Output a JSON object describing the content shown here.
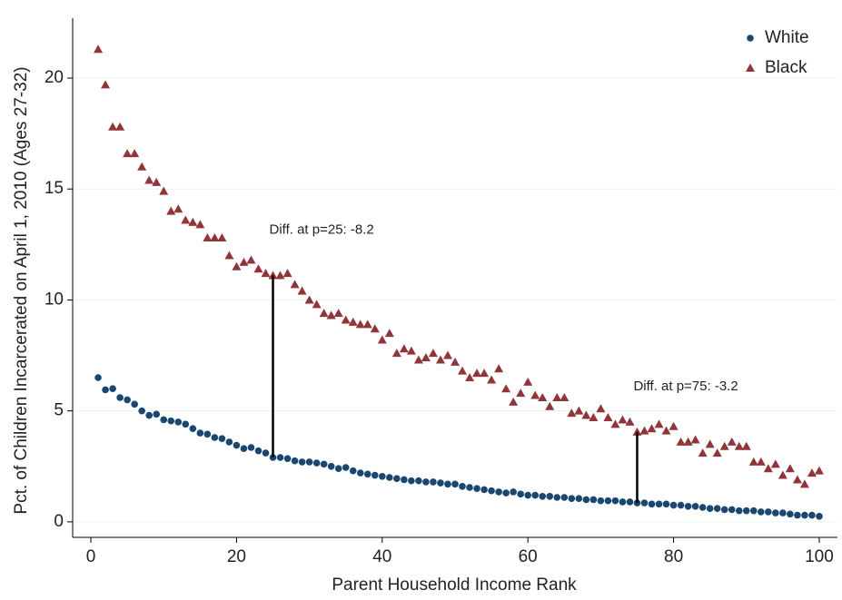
{
  "chart_data": {
    "type": "scatter",
    "x_label": "Parent Household Income Rank",
    "y_label": "Pct. of Children Incarcerated on April 1, 2010 (Ages 27-32)",
    "x": [
      1,
      2,
      3,
      4,
      5,
      6,
      7,
      8,
      9,
      10,
      11,
      12,
      13,
      14,
      15,
      16,
      17,
      18,
      19,
      20,
      21,
      22,
      23,
      24,
      25,
      26,
      27,
      28,
      29,
      30,
      31,
      32,
      33,
      34,
      35,
      36,
      37,
      38,
      39,
      40,
      41,
      42,
      43,
      44,
      45,
      46,
      47,
      48,
      49,
      50,
      51,
      52,
      53,
      54,
      55,
      56,
      57,
      58,
      59,
      60,
      61,
      62,
      63,
      64,
      65,
      66,
      67,
      68,
      69,
      70,
      71,
      72,
      73,
      74,
      75,
      76,
      77,
      78,
      79,
      80,
      81,
      82,
      83,
      84,
      85,
      86,
      87,
      88,
      89,
      90,
      91,
      92,
      93,
      94,
      95,
      96,
      97,
      98,
      99,
      100
    ],
    "series": [
      {
        "name": "White",
        "color": "#1a476f",
        "marker": "circle",
        "values": [
          6.5,
          5.95,
          6.0,
          5.6,
          5.5,
          5.3,
          5.0,
          4.8,
          4.85,
          4.6,
          4.55,
          4.5,
          4.4,
          4.2,
          4.0,
          3.95,
          3.8,
          3.75,
          3.6,
          3.45,
          3.3,
          3.35,
          3.2,
          3.1,
          2.9,
          2.9,
          2.85,
          2.75,
          2.7,
          2.7,
          2.65,
          2.6,
          2.5,
          2.4,
          2.45,
          2.3,
          2.2,
          2.15,
          2.1,
          2.05,
          2.0,
          1.95,
          1.9,
          1.85,
          1.85,
          1.8,
          1.8,
          1.75,
          1.7,
          1.7,
          1.6,
          1.55,
          1.5,
          1.45,
          1.4,
          1.35,
          1.3,
          1.35,
          1.25,
          1.2,
          1.2,
          1.15,
          1.15,
          1.1,
          1.1,
          1.05,
          1.05,
          1.0,
          1.0,
          0.95,
          0.95,
          0.95,
          0.9,
          0.9,
          0.85,
          0.85,
          0.8,
          0.8,
          0.8,
          0.75,
          0.75,
          0.7,
          0.7,
          0.65,
          0.6,
          0.6,
          0.55,
          0.55,
          0.5,
          0.5,
          0.5,
          0.45,
          0.45,
          0.4,
          0.4,
          0.35,
          0.3,
          0.3,
          0.3,
          0.25
        ]
      },
      {
        "name": "Black",
        "color": "#90353b",
        "marker": "triangle",
        "values": [
          21.3,
          19.7,
          17.8,
          17.8,
          16.6,
          16.6,
          16.0,
          15.4,
          15.3,
          14.9,
          14.0,
          14.1,
          13.6,
          13.5,
          13.4,
          12.8,
          12.8,
          12.8,
          12.0,
          11.5,
          11.7,
          11.8,
          11.4,
          11.2,
          11.1,
          11.1,
          11.2,
          10.7,
          10.4,
          10.0,
          9.8,
          9.4,
          9.3,
          9.4,
          9.1,
          9.0,
          8.9,
          8.9,
          8.7,
          8.2,
          8.5,
          7.6,
          7.8,
          7.7,
          7.3,
          7.4,
          7.6,
          7.3,
          7.5,
          7.2,
          6.8,
          6.5,
          6.7,
          6.7,
          6.4,
          6.9,
          6.0,
          5.4,
          5.8,
          6.3,
          5.7,
          5.6,
          5.2,
          5.6,
          5.6,
          4.9,
          5.0,
          4.8,
          4.7,
          5.1,
          4.7,
          4.4,
          4.6,
          4.5,
          4.05,
          4.1,
          4.2,
          4.4,
          4.1,
          4.3,
          3.6,
          3.6,
          3.7,
          3.1,
          3.5,
          3.1,
          3.4,
          3.6,
          3.4,
          3.4,
          2.7,
          2.7,
          2.4,
          2.6,
          2.1,
          2.4,
          1.9,
          1.7,
          2.2,
          2.3
        ]
      }
    ],
    "annotations": [
      {
        "text": "Diff. at p=25: -8.2",
        "x": 25
      },
      {
        "text": "Diff. at p=75: -3.2",
        "x": 75
      }
    ],
    "xlim": [
      -2.5,
      102.5
    ],
    "ylim": [
      -0.7,
      22.7
    ],
    "xticks": [
      0,
      20,
      40,
      60,
      80,
      100
    ],
    "yticks": [
      0,
      5,
      10,
      15,
      20
    ],
    "grid": true,
    "legend": "top-right"
  }
}
